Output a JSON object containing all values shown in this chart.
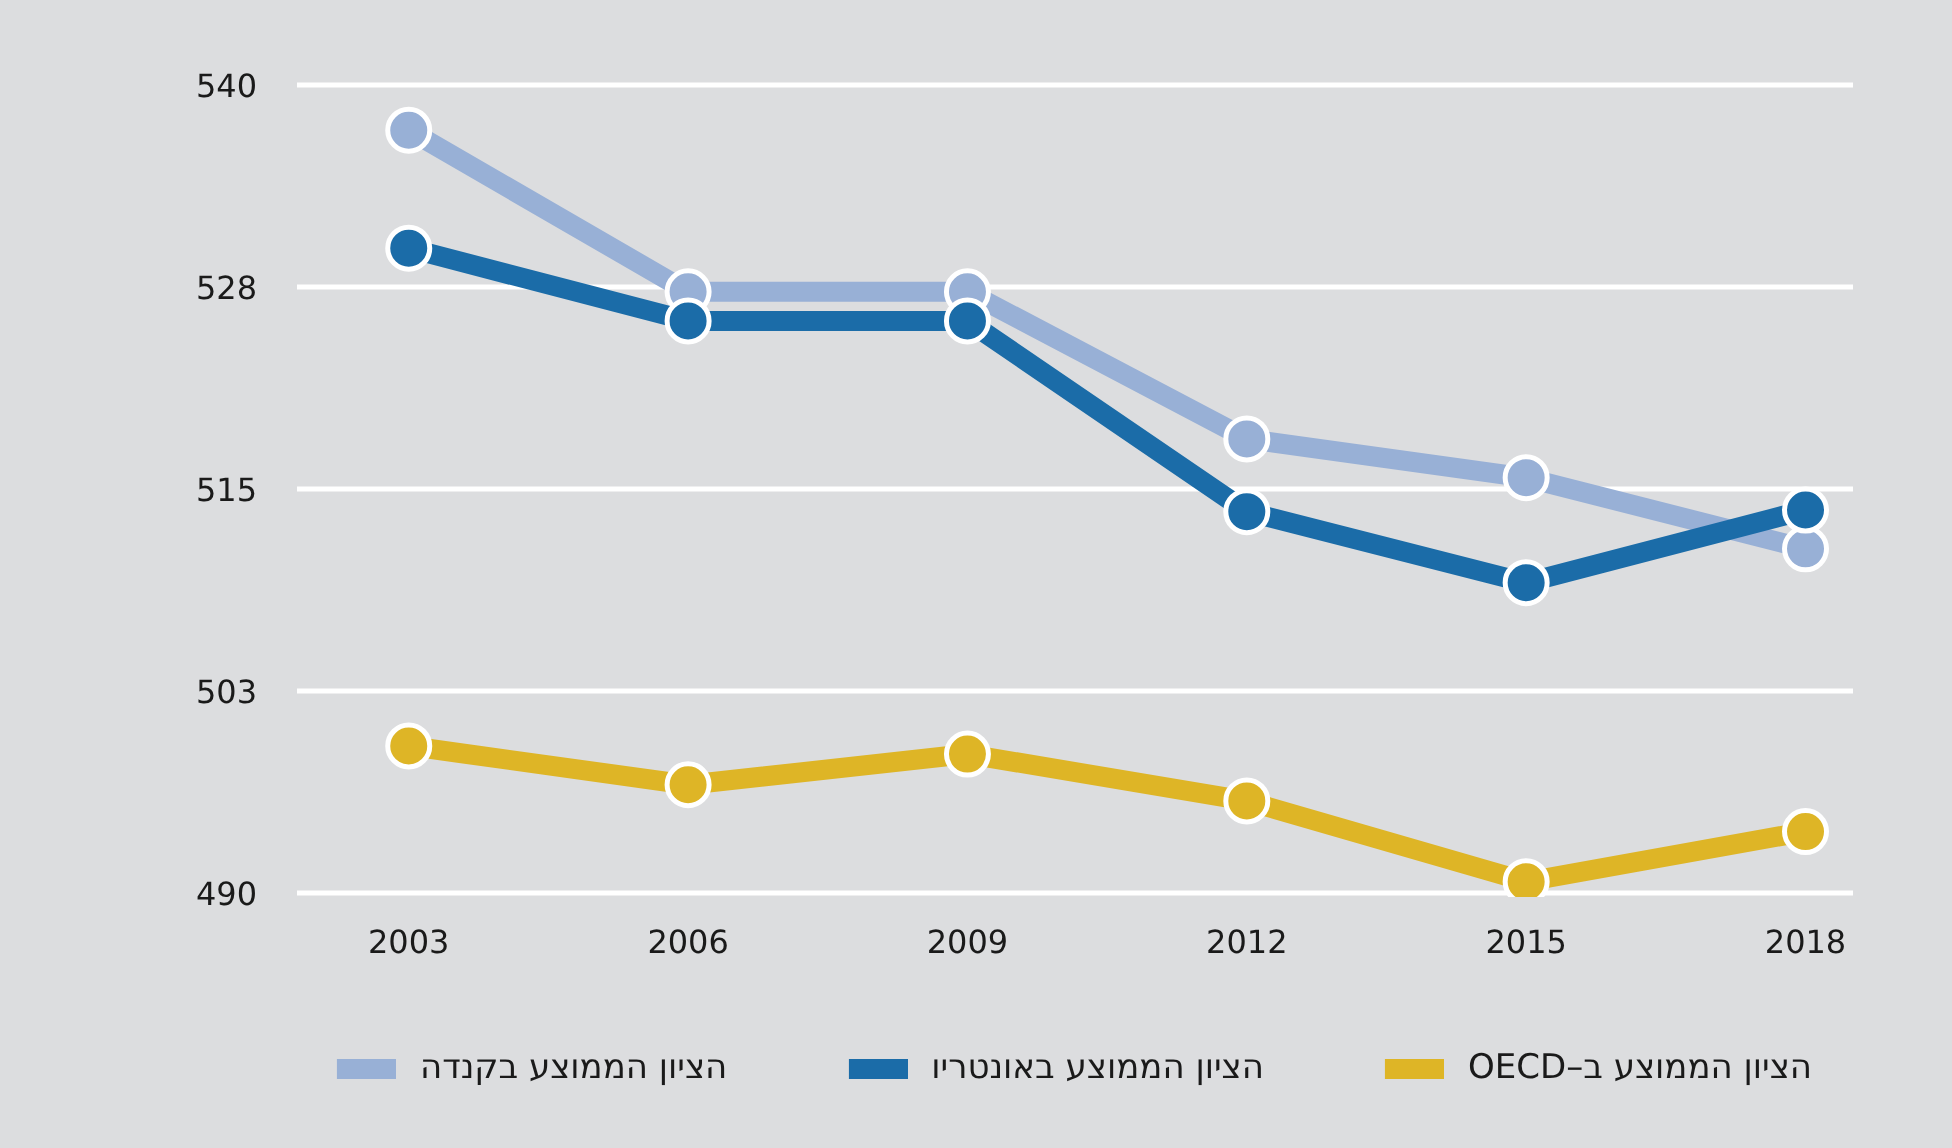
{
  "chart_data": {
    "type": "line",
    "categories": [
      "2003",
      "2006",
      "2009",
      "2012",
      "2015",
      "2018"
    ],
    "series": [
      {
        "name": "הציון הממוצע בקנדה",
        "color": "#98b0d6",
        "values": [
          537.2,
          527.2,
          527.2,
          518.1,
          515.7,
          511.3
        ]
      },
      {
        "name": "הציון הממוצע באונטריו",
        "color": "#1b6ca8",
        "values": [
          529.9,
          525.4,
          525.4,
          513.6,
          509.2,
          513.7
        ]
      },
      {
        "name": "הציון הממוצע ב–OECD",
        "color": "#deb526",
        "values": [
          499.1,
          496.7,
          498.6,
          495.7,
          490.7,
          493.8
        ]
      }
    ],
    "ylim": [
      490,
      540
    ],
    "yticks": [
      490,
      {
        "value": 502.5,
        "label": "503"
      },
      515,
      {
        "value": 527.5,
        "label": "528"
      },
      540
    ],
    "grid": "y",
    "legend": "bottom",
    "marker": "circle",
    "line_style": "solid"
  }
}
